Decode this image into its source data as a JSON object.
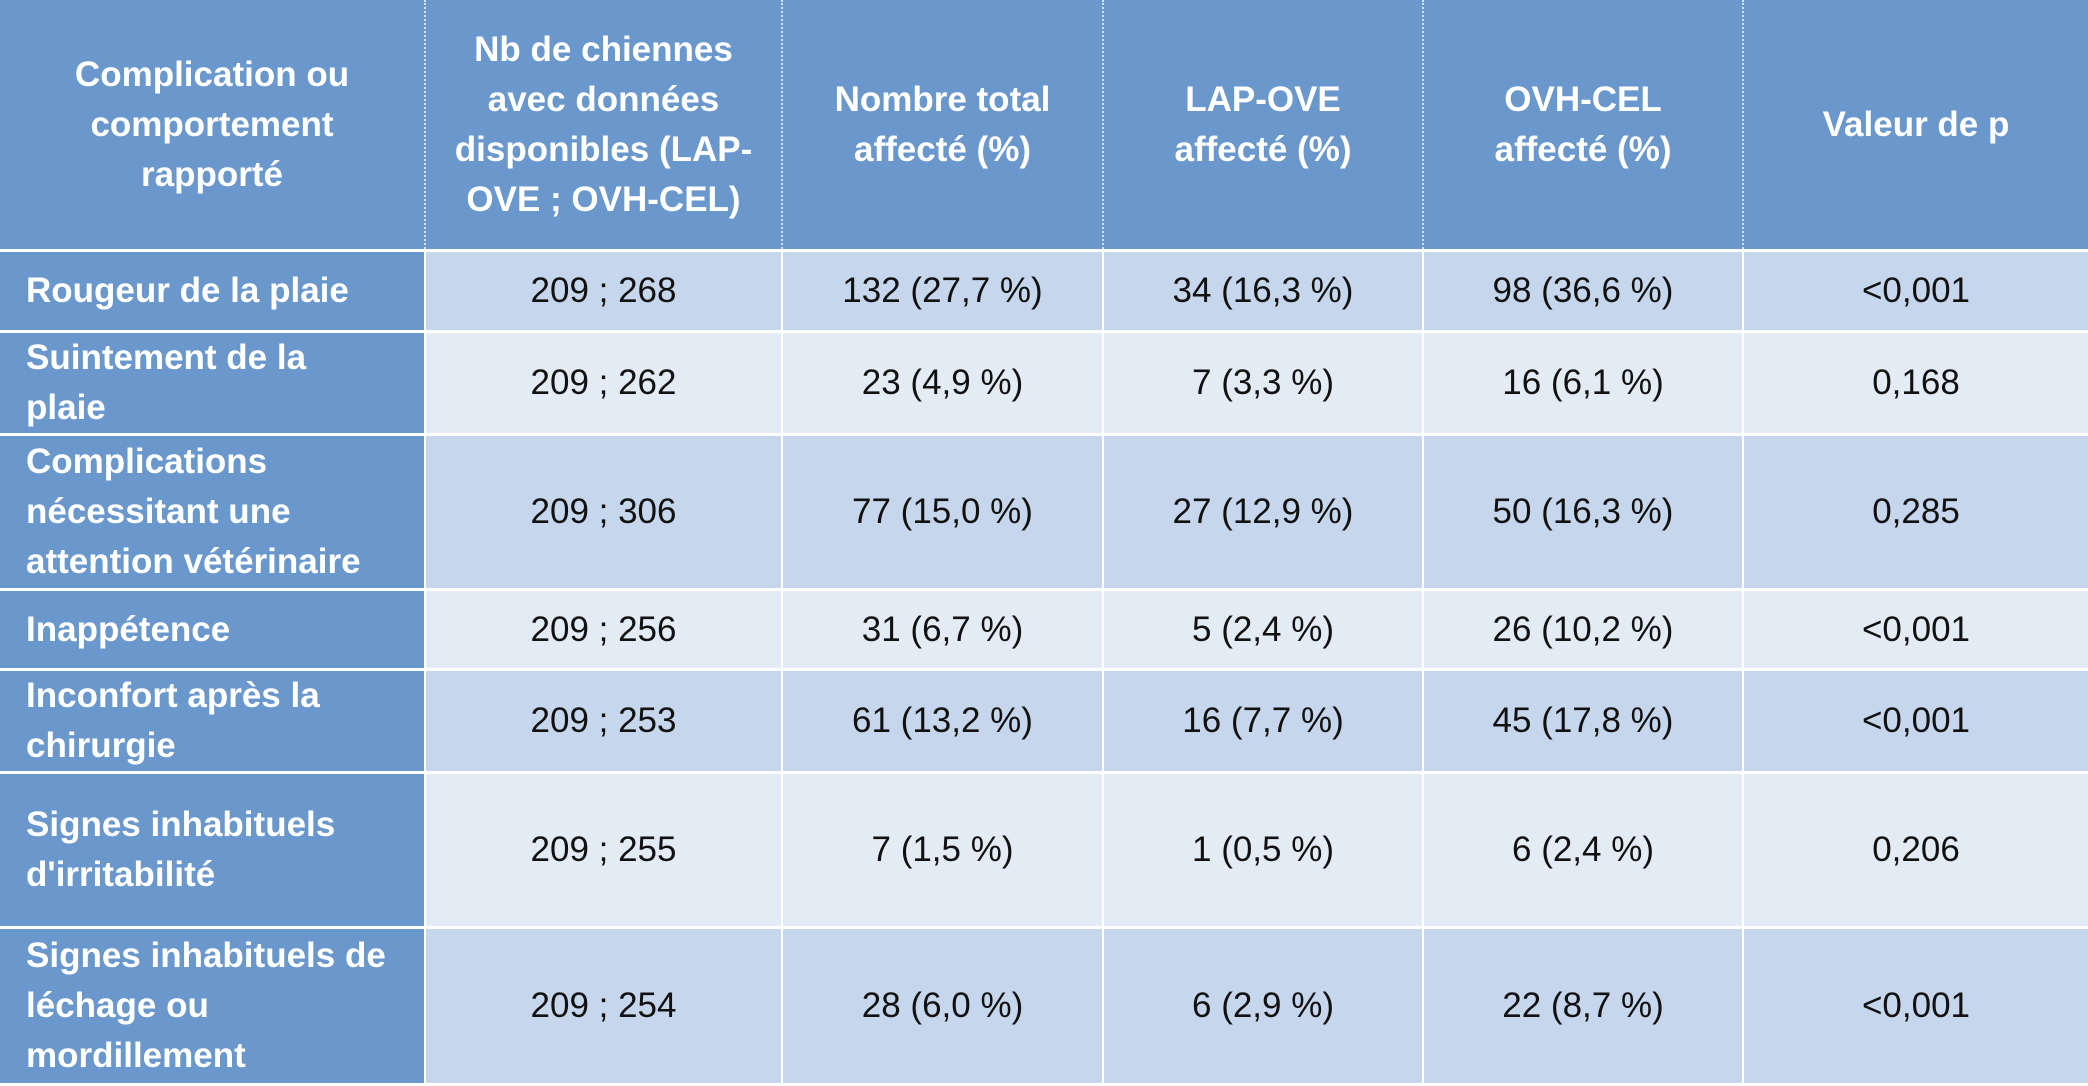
{
  "table": {
    "headers": [
      "Complication ou comportement rapporté",
      "Nb de chiennes avec données disponibles (LAP-OVE ; OVH-CEL)",
      "Nombre total affecté (%)",
      "LAP-OVE affecté (%)",
      "OVH-CEL affecté (%)",
      "Valeur de p"
    ],
    "rows": [
      {
        "cells": [
          "Rougeur de la plaie",
          "209 ; 268",
          "132 (27,7  %)",
          "34 (16,3 %)",
          "98 (36,6 %)",
          "<0,001"
        ]
      },
      {
        "cells": [
          "Suintement de la plaie",
          "209 ; 262",
          "23 (4,9 %)",
          "7 (3,3 %)",
          "16 (6,1 %)",
          "0,168"
        ]
      },
      {
        "cells": [
          "Complications nécessitant une attention vétérinaire",
          "209 ; 306",
          "77 (15,0 %)",
          "27 (12,9 %)",
          "50 (16,3 %)",
          "0,285"
        ]
      },
      {
        "cells": [
          "Inappétence",
          "209 ; 256",
          "31 (6,7 %)",
          "5 (2,4 %)",
          "26 (10,2 %)",
          "<0,001"
        ]
      },
      {
        "cells": [
          "Inconfort après la chirurgie",
          "209 ; 253",
          "61 (13,2 %)",
          "16 (7,7 %)",
          "45 (17,8 %)",
          "<0,001"
        ]
      },
      {
        "cells": [
          "Signes inhabituels d'irritabilité",
          "209 ; 255",
          "7 (1,5 %)",
          "1 (0,5 %)",
          "6 (2,4 %)",
          "0,206"
        ]
      },
      {
        "cells": [
          "Signes inhabituels de léchage ou mordillement",
          "209 ; 254",
          "28 (6,0 %)",
          "6 (2,9 %)",
          "22 (8,7 %)",
          "<0,001"
        ]
      }
    ]
  },
  "colors": {
    "header_bg": "#6a98cd",
    "row_dark": "#c6d6ec",
    "row_light": "#e3ebf5"
  }
}
